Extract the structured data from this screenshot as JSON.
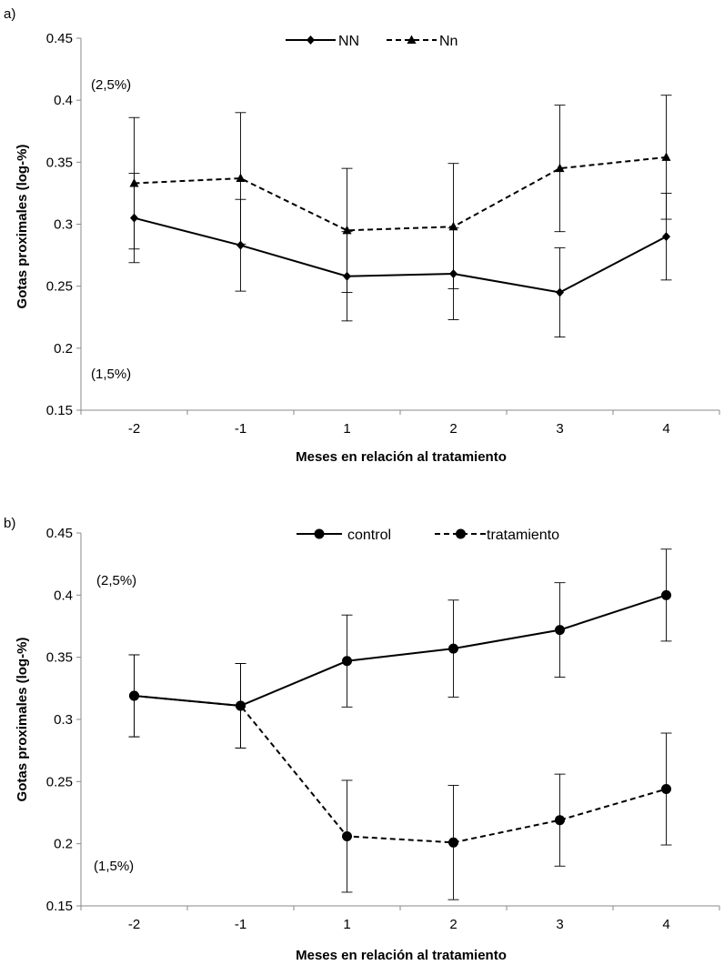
{
  "chart_data": [
    {
      "type": "line",
      "panel_label": "a)",
      "title": "",
      "xlabel": "Meses en relación al tratamiento",
      "ylabel": "Gotas proximales (log-%)",
      "categories": [
        "-2",
        "-1",
        "1",
        "2",
        "3",
        "4"
      ],
      "ylim": [
        0.15,
        0.45
      ],
      "yticks": [
        "0.15",
        "0.2",
        "0.25",
        "0.3",
        "0.35",
        "0.4",
        "0.45"
      ],
      "grid": false,
      "legend_position": "top-center",
      "annotations": [
        "(2,5%)",
        "(1,5%)"
      ],
      "series": [
        {
          "name": "NN",
          "line": "solid",
          "marker": "diamond",
          "values": [
            0.305,
            0.283,
            0.258,
            0.26,
            0.245,
            0.29
          ],
          "err_low": [
            0.269,
            0.246,
            0.222,
            0.223,
            0.209,
            0.255
          ],
          "err_high": [
            0.341,
            0.32,
            0.294,
            0.297,
            0.281,
            0.325
          ]
        },
        {
          "name": "Nn",
          "line": "dashed",
          "marker": "triangle",
          "values": [
            0.333,
            0.337,
            0.295,
            0.298,
            0.345,
            0.354
          ],
          "err_low": [
            0.28,
            0.284,
            0.245,
            0.248,
            0.294,
            0.304
          ],
          "err_high": [
            0.386,
            0.39,
            0.345,
            0.349,
            0.396,
            0.404
          ]
        }
      ]
    },
    {
      "type": "line",
      "panel_label": "b)",
      "title": "",
      "xlabel": "Meses en relación al tratamiento",
      "ylabel": "Gotas proximales (log-%)",
      "categories": [
        "-2",
        "-1",
        "1",
        "2",
        "3",
        "4"
      ],
      "ylim": [
        0.15,
        0.45
      ],
      "yticks": [
        "0.15",
        "0.2",
        "0.25",
        "0.3",
        "0.35",
        "0.4",
        "0.45"
      ],
      "grid": false,
      "legend_position": "top-center",
      "annotations": [
        "(2,5%)",
        "(1,5%)"
      ],
      "series": [
        {
          "name": "control",
          "line": "solid",
          "marker": "circle",
          "values": [
            0.319,
            0.311,
            0.347,
            0.357,
            0.372,
            0.4
          ],
          "err_low": [
            0.286,
            0.277,
            0.31,
            0.318,
            0.334,
            0.363
          ],
          "err_high": [
            0.352,
            0.345,
            0.384,
            0.396,
            0.41,
            0.437
          ]
        },
        {
          "name": "tratamiento",
          "line": "dashed",
          "marker": "circle",
          "values": [
            0.319,
            0.311,
            0.206,
            0.201,
            0.219,
            0.244
          ],
          "err_low": [
            0.286,
            0.277,
            0.161,
            0.155,
            0.182,
            0.199
          ],
          "err_high": [
            0.352,
            0.345,
            0.251,
            0.247,
            0.256,
            0.289
          ]
        }
      ]
    }
  ]
}
